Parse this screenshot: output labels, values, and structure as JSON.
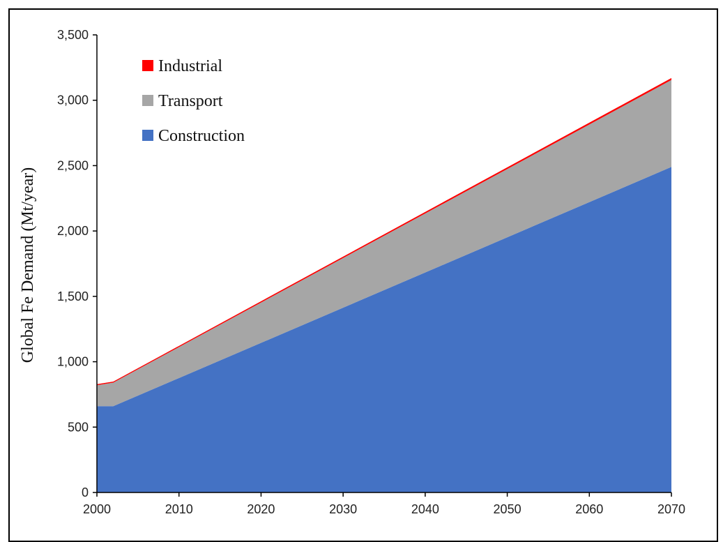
{
  "chart_data": {
    "type": "area",
    "stacked": true,
    "title": "",
    "xlabel": "",
    "ylabel": "Global Fe Demand (Mt/year)",
    "xlim": [
      2000,
      2070
    ],
    "ylim": [
      0,
      3500
    ],
    "x_ticks": [
      2000,
      2010,
      2020,
      2030,
      2040,
      2050,
      2060,
      2070
    ],
    "x_tick_labels": [
      "2000",
      "2010",
      "2020",
      "2030",
      "2040",
      "2050",
      "2060",
      "2070"
    ],
    "y_ticks": [
      0,
      500,
      1000,
      1500,
      2000,
      2500,
      3000,
      3500
    ],
    "y_tick_labels": [
      "0",
      "500",
      "1,000",
      "1,500",
      "2,000",
      "2,500",
      "3,000",
      "3,500"
    ],
    "grid": false,
    "legend_position": "top-left",
    "x": [
      2000,
      2002,
      2070
    ],
    "series": [
      {
        "name": "Construction",
        "color": "#4472c4",
        "values": [
          660,
          660,
          2490
        ]
      },
      {
        "name": "Transport",
        "color": "#a6a6a6",
        "values": [
          160,
          180,
          665
        ]
      },
      {
        "name": "Industrial",
        "color": "#ff0000",
        "values": [
          8,
          8,
          15
        ]
      }
    ],
    "legend_order": [
      "Industrial",
      "Transport",
      "Construction"
    ]
  }
}
